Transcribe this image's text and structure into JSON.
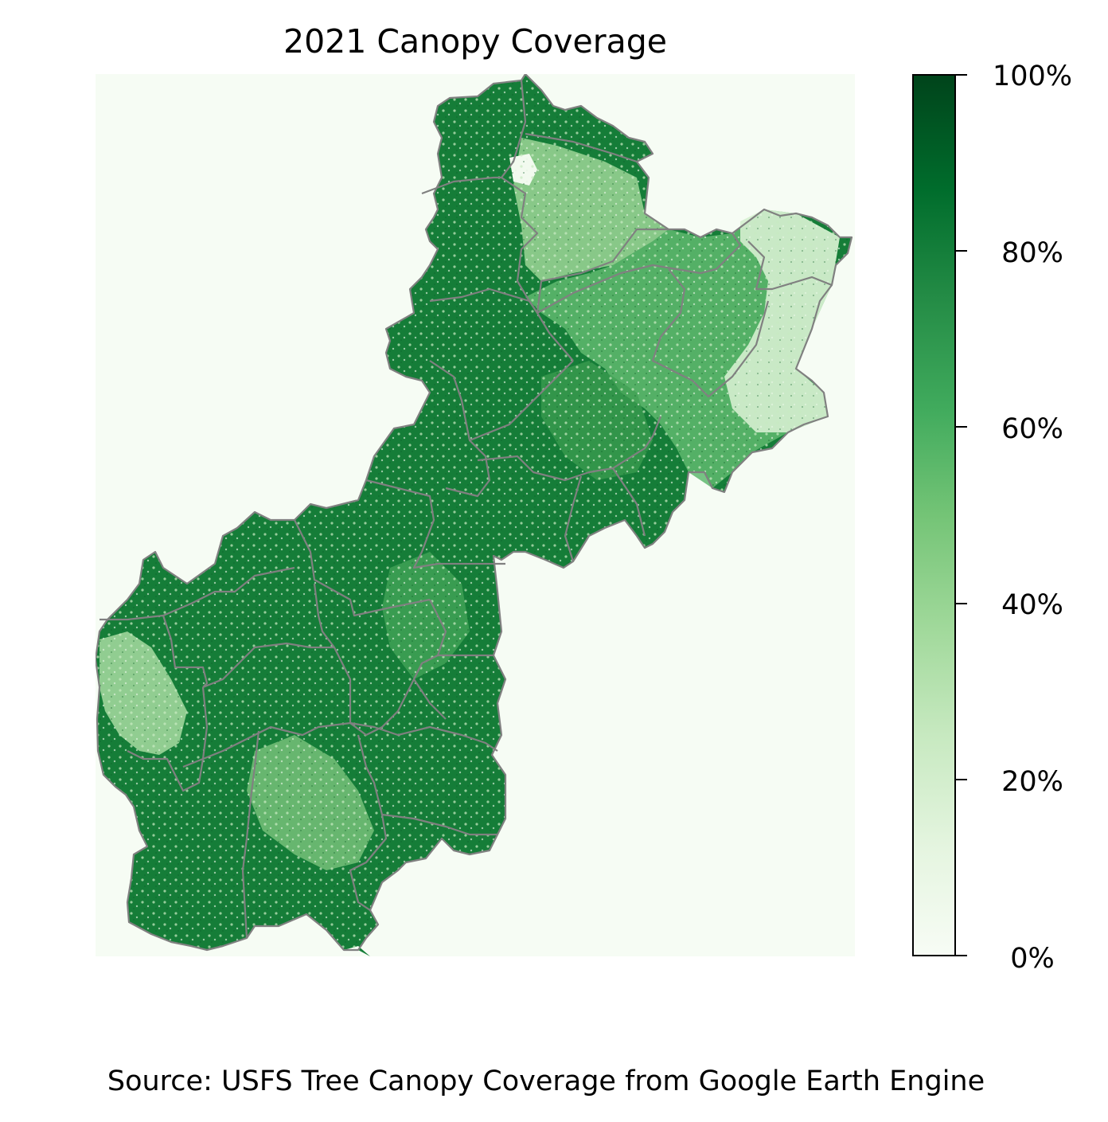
{
  "title": "2021 Canopy Coverage",
  "source": "Source: USFS Tree Canopy Coverage from Google Earth Engine",
  "colorbar": {
    "ticks": [
      "0%",
      "20%",
      "40%",
      "60%",
      "80%",
      "100%"
    ],
    "range": [
      0,
      100
    ],
    "colormap": "Greens"
  },
  "colors": {
    "background": "#f6fcf4",
    "dense": "#137a36",
    "medium": "#4daf62",
    "light": "#b7e2b1",
    "very_light": "#e3f3de",
    "boundary": "#808080"
  }
}
